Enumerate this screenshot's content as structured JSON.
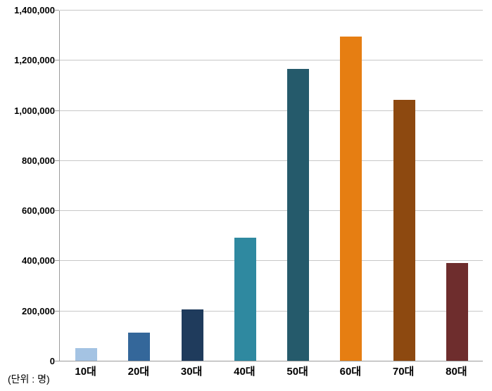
{
  "chart_data": {
    "type": "bar",
    "title": "",
    "xlabel": "",
    "ylabel": "",
    "unit_note": "(단위 : 명)",
    "categories": [
      "10대",
      "20대",
      "30대",
      "40대",
      "50대",
      "60대",
      "70대",
      "80대"
    ],
    "values": [
      50000,
      112000,
      205000,
      492000,
      1163000,
      1292000,
      1040000,
      390000
    ],
    "bar_colors": [
      "#A4C3E3",
      "#34679A",
      "#1F3B5C",
      "#2F89A0",
      "#255A6B",
      "#E67E12",
      "#8D4910",
      "#6E2D2D"
    ],
    "ylim": [
      0,
      1400000
    ],
    "ytick_step": 200000,
    "ytick_labels": [
      "0",
      "200,000",
      "400,000",
      "600,000",
      "800,000",
      "1,000,000",
      "1,200,000",
      "1,400,000"
    ],
    "grid": true,
    "legend_position": "none",
    "colors": {
      "background": "#FFFFFF",
      "gridline": "#C7C7C7",
      "axis_line": "#9B9B9B",
      "tick_label": "#000000"
    }
  }
}
